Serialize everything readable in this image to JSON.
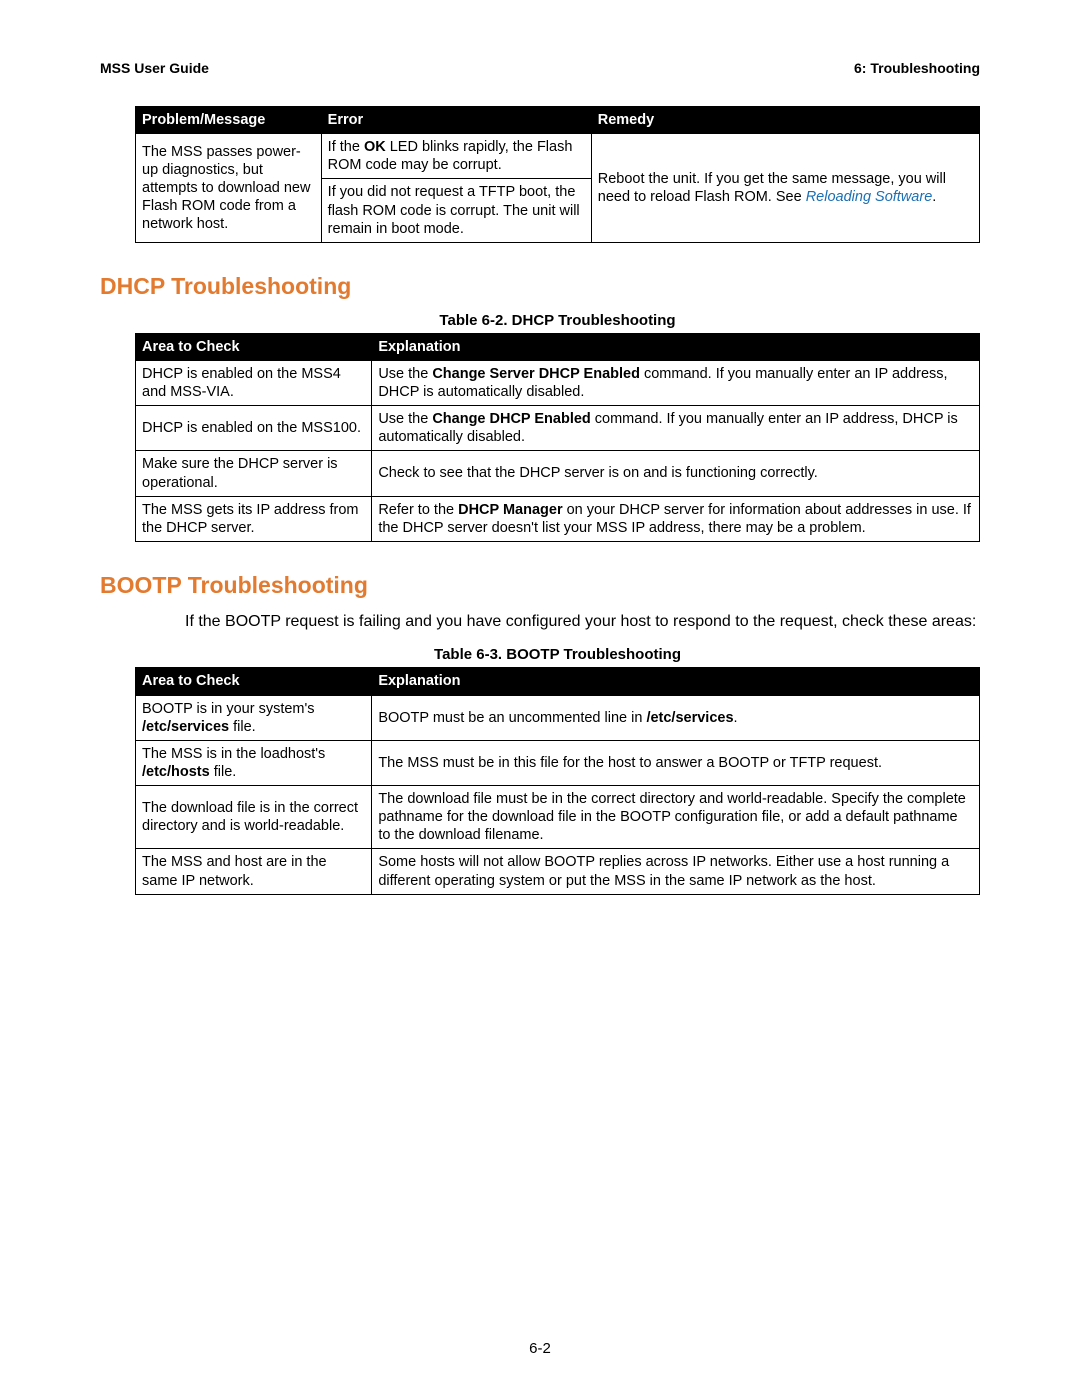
{
  "header": {
    "left": "MSS User Guide",
    "right": "6:  Troubleshooting"
  },
  "table1": {
    "headers": [
      "Problem/Message",
      "Error",
      "Remedy"
    ],
    "problem": "The MSS passes power-up diagnostics, but attempts to download new Flash ROM code from a network host.",
    "error1_pre": "If the ",
    "error1_bold": "OK",
    "error1_post": " LED blinks rapidly, the Flash ROM code may be corrupt.",
    "error2": "If you did not request a TFTP boot, the flash ROM code is corrupt. The unit will remain in boot mode.",
    "remedy_pre": "Reboot the unit. If you get the same message, you will need to reload Flash ROM. See ",
    "remedy_link": "Reloading Software",
    "remedy_post": "."
  },
  "section1": {
    "title": "DHCP Troubleshooting",
    "caption": "Table 6-2.  DHCP Troubleshooting",
    "headers": [
      "Area to Check",
      "Explanation"
    ],
    "rows": [
      {
        "a": "DHCP is enabled on the MSS4 and MSS-VIA.",
        "b_pre": "Use the ",
        "b_bold": "Change Server DHCP Enabled",
        "b_post": " command. If you manually enter an IP address, DHCP is automatically disabled."
      },
      {
        "a": "DHCP is enabled on the MSS100.",
        "b_pre": "Use the ",
        "b_bold": "Change DHCP Enabled",
        "b_post": " command. If you manually enter an IP address, DHCP is automatically disabled."
      },
      {
        "a": "Make sure the DHCP server is operational.",
        "b": "Check to see that the DHCP server is on and is functioning correctly."
      },
      {
        "a": "The MSS gets its IP address from the DHCP server.",
        "b_pre": "Refer to the ",
        "b_bold": "DHCP Manager",
        "b_post": " on your DHCP server for information about addresses in use. If the DHCP server doesn't list your MSS IP address, there may be a problem."
      }
    ]
  },
  "section2": {
    "title": "BOOTP Troubleshooting",
    "intro": "If the BOOTP request is failing and you have configured your host to respond to the request, check these areas:",
    "caption": "Table 6-3.  BOOTP Troubleshooting",
    "headers": [
      "Area to Check",
      "Explanation"
    ],
    "rows": [
      {
        "a_pre": "BOOTP is in your system's ",
        "a_bold": "/etc/services",
        "a_post": " file.",
        "b_pre": "BOOTP must be an uncommented line in ",
        "b_bold": "/etc/services",
        "b_post": "."
      },
      {
        "a_pre": "The MSS is in the loadhost's ",
        "a_bold": "/etc/hosts",
        "a_post": " file.",
        "b": "The MSS must be in this file for the host to answer a BOOTP or TFTP request."
      },
      {
        "a": "The download file is in the correct directory and is world-readable.",
        "b": "The download file must be in the correct directory and world-readable. Specify the complete pathname for the download file in the BOOTP configuration file, or add a default pathname to the download filename."
      },
      {
        "a": "The MSS and host are in the same IP network.",
        "b": "Some hosts will not allow BOOTP replies across IP networks. Either use a host running a different operating system or put the MSS in the same IP network as the host."
      }
    ]
  },
  "page_number": "6-2",
  "colors": {
    "heading": "#e27a2f",
    "link": "#1a6fb5",
    "table_header_bg": "#000000",
    "table_header_fg": "#ffffff",
    "border": "#000000",
    "text": "#000000",
    "background": "#ffffff"
  },
  "fonts": {
    "body_family": "Arial, Helvetica, sans-serif",
    "body_size_pt": 11,
    "heading_size_pt": 17,
    "caption_size_pt": 11
  }
}
